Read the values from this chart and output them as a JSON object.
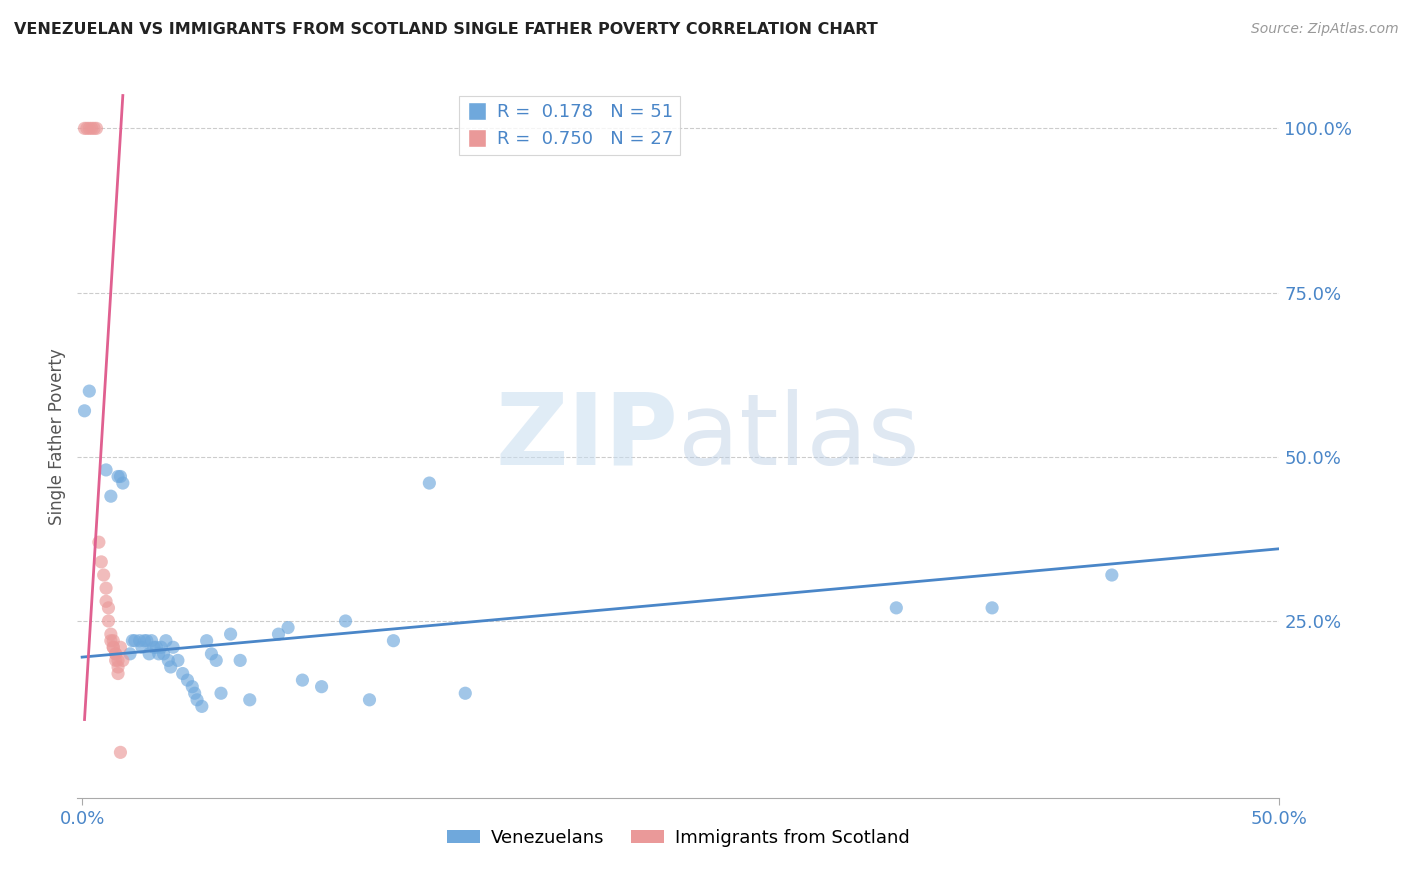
{
  "title": "VENEZUELAN VS IMMIGRANTS FROM SCOTLAND SINGLE FATHER POVERTY CORRELATION CHART",
  "source": "Source: ZipAtlas.com",
  "ylabel": "Single Father Poverty",
  "right_yticks": [
    "100.0%",
    "75.0%",
    "50.0%",
    "25.0%"
  ],
  "right_ytick_vals": [
    1.0,
    0.75,
    0.5,
    0.25
  ],
  "watermark_zip": "ZIP",
  "watermark_atlas": "atlas",
  "legend_blue_R": "0.178",
  "legend_blue_N": "51",
  "legend_pink_R": "0.750",
  "legend_pink_N": "27",
  "blue_color": "#6fa8dc",
  "pink_color": "#ea9999",
  "blue_line_color": "#4a86c8",
  "pink_line_color": "#e06090",
  "blue_scatter": [
    [
      0.001,
      0.57
    ],
    [
      0.003,
      0.6
    ],
    [
      0.01,
      0.48
    ],
    [
      0.012,
      0.44
    ],
    [
      0.015,
      0.47
    ],
    [
      0.016,
      0.47
    ],
    [
      0.017,
      0.46
    ],
    [
      0.02,
      0.2
    ],
    [
      0.021,
      0.22
    ],
    [
      0.022,
      0.22
    ],
    [
      0.024,
      0.22
    ],
    [
      0.025,
      0.21
    ],
    [
      0.026,
      0.22
    ],
    [
      0.027,
      0.22
    ],
    [
      0.028,
      0.2
    ],
    [
      0.029,
      0.22
    ],
    [
      0.03,
      0.21
    ],
    [
      0.031,
      0.21
    ],
    [
      0.032,
      0.2
    ],
    [
      0.033,
      0.21
    ],
    [
      0.034,
      0.2
    ],
    [
      0.035,
      0.22
    ],
    [
      0.036,
      0.19
    ],
    [
      0.037,
      0.18
    ],
    [
      0.038,
      0.21
    ],
    [
      0.04,
      0.19
    ],
    [
      0.042,
      0.17
    ],
    [
      0.044,
      0.16
    ],
    [
      0.046,
      0.15
    ],
    [
      0.047,
      0.14
    ],
    [
      0.048,
      0.13
    ],
    [
      0.05,
      0.12
    ],
    [
      0.052,
      0.22
    ],
    [
      0.054,
      0.2
    ],
    [
      0.056,
      0.19
    ],
    [
      0.058,
      0.14
    ],
    [
      0.062,
      0.23
    ],
    [
      0.066,
      0.19
    ],
    [
      0.07,
      0.13
    ],
    [
      0.082,
      0.23
    ],
    [
      0.086,
      0.24
    ],
    [
      0.092,
      0.16
    ],
    [
      0.1,
      0.15
    ],
    [
      0.11,
      0.25
    ],
    [
      0.12,
      0.13
    ],
    [
      0.13,
      0.22
    ],
    [
      0.145,
      0.46
    ],
    [
      0.16,
      0.14
    ],
    [
      0.34,
      0.27
    ],
    [
      0.38,
      0.27
    ],
    [
      0.43,
      0.32
    ]
  ],
  "pink_scatter": [
    [
      0.001,
      1.0
    ],
    [
      0.002,
      1.0
    ],
    [
      0.003,
      1.0
    ],
    [
      0.004,
      1.0
    ],
    [
      0.005,
      1.0
    ],
    [
      0.006,
      1.0
    ],
    [
      0.007,
      0.37
    ],
    [
      0.008,
      0.34
    ],
    [
      0.009,
      0.32
    ],
    [
      0.01,
      0.3
    ],
    [
      0.01,
      0.28
    ],
    [
      0.011,
      0.27
    ],
    [
      0.011,
      0.25
    ],
    [
      0.012,
      0.23
    ],
    [
      0.012,
      0.22
    ],
    [
      0.013,
      0.22
    ],
    [
      0.013,
      0.21
    ],
    [
      0.013,
      0.21
    ],
    [
      0.014,
      0.2
    ],
    [
      0.014,
      0.2
    ],
    [
      0.014,
      0.19
    ],
    [
      0.015,
      0.19
    ],
    [
      0.015,
      0.18
    ],
    [
      0.015,
      0.17
    ],
    [
      0.016,
      0.05
    ],
    [
      0.016,
      0.21
    ],
    [
      0.017,
      0.19
    ]
  ],
  "blue_trendline_x": [
    0.0,
    0.5
  ],
  "blue_trendline_y": [
    0.195,
    0.36
  ],
  "pink_trendline_x": [
    0.001,
    0.017
  ],
  "pink_trendline_y": [
    0.1,
    1.05
  ],
  "xmin": -0.002,
  "xmax": 0.5,
  "ymin": -0.02,
  "ymax": 1.08,
  "xtick_positions": [
    0.0,
    0.5
  ],
  "xtick_labels": [
    "0.0%",
    "50.0%"
  ],
  "grid_color": "#cccccc",
  "background_color": "#ffffff"
}
